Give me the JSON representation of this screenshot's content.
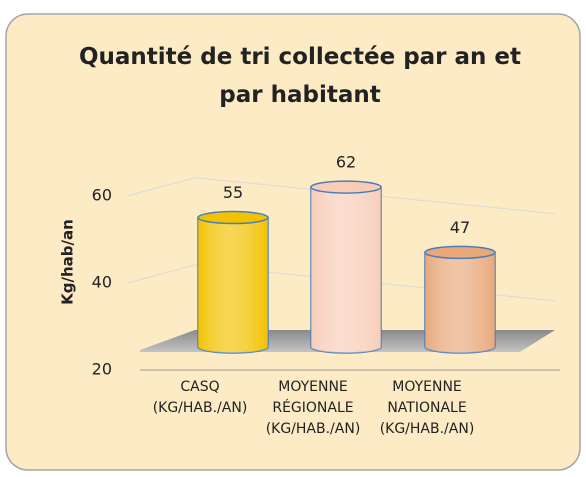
{
  "chart_data": {
    "type": "bar",
    "title": "Quantité de tri collectée par an et par habitant",
    "y_label": "Kg/hab/an",
    "categories": [
      "CASQ (KG/HAB./AN)",
      "MOYENNE RÉGIONALE (KG/HAB./AN)",
      "MOYENNE NATIONALE (KG/HAB./AN)"
    ],
    "values": [
      55,
      62,
      47
    ],
    "colors": [
      "#f2c200",
      "#f7cdb8",
      "#e8a87a"
    ],
    "ylim": [
      20,
      65
    ],
    "yticks": [
      20,
      40,
      60
    ],
    "grid": true
  }
}
